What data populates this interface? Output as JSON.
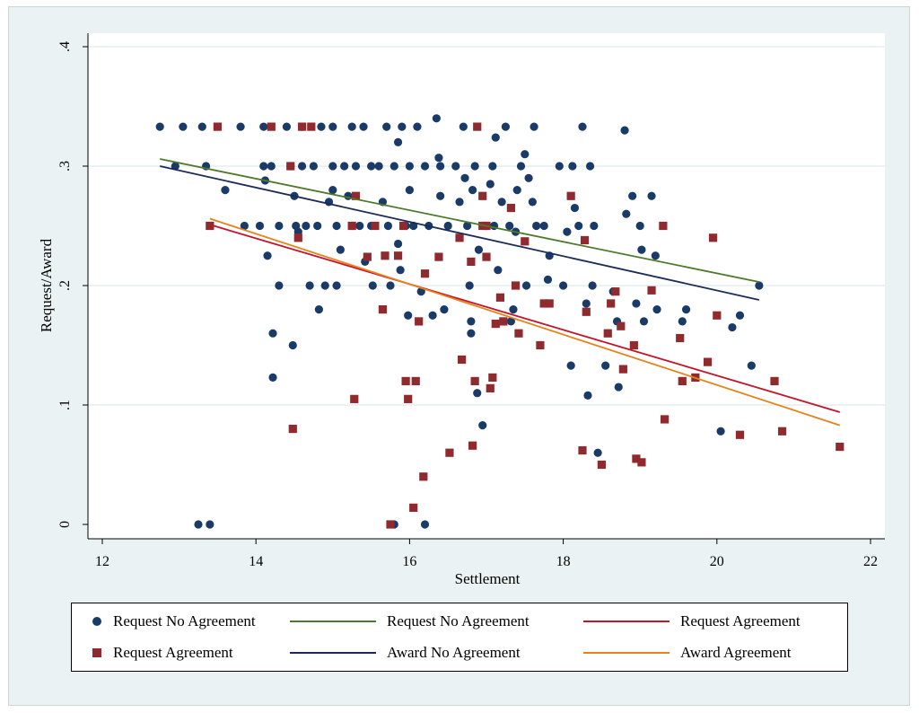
{
  "chart_data": {
    "type": "scatter",
    "xlabel": "Settlement",
    "ylabel": "Request/Award",
    "xlim": [
      11.85,
      22.2
    ],
    "ylim": [
      -0.025,
      0.41
    ],
    "x_ticks": [
      12,
      14,
      16,
      18,
      20,
      22
    ],
    "x_tick_labels": [
      "12",
      "14",
      "16",
      "18",
      "20",
      "22"
    ],
    "y_ticks": [
      0,
      0.1,
      0.2,
      0.3,
      0.4
    ],
    "y_tick_labels": [
      "0",
      ".1",
      ".2",
      ".3",
      ".4"
    ],
    "grid": "horizontal",
    "legend_position": "bottom",
    "colors": {
      "request_no_agreement_points": "#1a3a68",
      "request_agreement_points": "#8f2a2e",
      "request_no_agreement_line": "#4d7a2a",
      "award_no_agreement_line": "#1b2a58",
      "request_agreement_line": "#c4132a",
      "award_agreement_line": "#e8821a",
      "background": "#eaf2f3",
      "plot_background": "#ffffff",
      "gridline": "#e3edee"
    },
    "series": [
      {
        "name": "Request No Agreement",
        "kind": "points",
        "marker": "circle",
        "color": "#1a3a68",
        "points": [
          [
            12.75,
            0.333
          ],
          [
            12.95,
            0.3
          ],
          [
            13.05,
            0.333
          ],
          [
            13.3,
            0.333
          ],
          [
            13.35,
            0.3
          ],
          [
            13.6,
            0.28
          ],
          [
            13.8,
            0.333
          ],
          [
            13.85,
            0.25
          ],
          [
            14.05,
            0.25
          ],
          [
            14.1,
            0.333
          ],
          [
            14.1,
            0.3
          ],
          [
            14.12,
            0.288
          ],
          [
            14.15,
            0.225
          ],
          [
            14.2,
            0.3
          ],
          [
            14.22,
            0.16
          ],
          [
            14.22,
            0.123
          ],
          [
            14.3,
            0.25
          ],
          [
            14.3,
            0.2
          ],
          [
            14.4,
            0.333
          ],
          [
            14.45,
            0.3
          ],
          [
            14.48,
            0.15
          ],
          [
            14.5,
            0.275
          ],
          [
            14.52,
            0.25
          ],
          [
            14.55,
            0.245
          ],
          [
            14.6,
            0.333
          ],
          [
            14.6,
            0.3
          ],
          [
            14.65,
            0.25
          ],
          [
            14.7,
            0.2
          ],
          [
            14.75,
            0.3
          ],
          [
            14.8,
            0.25
          ],
          [
            14.82,
            0.18
          ],
          [
            14.85,
            0.333
          ],
          [
            14.9,
            0.2
          ],
          [
            14.95,
            0.27
          ],
          [
            15.0,
            0.333
          ],
          [
            15.0,
            0.3
          ],
          [
            15.0,
            0.28
          ],
          [
            15.05,
            0.25
          ],
          [
            15.05,
            0.2
          ],
          [
            15.1,
            0.23
          ],
          [
            15.15,
            0.3
          ],
          [
            15.2,
            0.275
          ],
          [
            15.25,
            0.333
          ],
          [
            15.25,
            0.25
          ],
          [
            15.3,
            0.3
          ],
          [
            15.35,
            0.25
          ],
          [
            15.4,
            0.333
          ],
          [
            15.42,
            0.22
          ],
          [
            15.5,
            0.3
          ],
          [
            15.5,
            0.25
          ],
          [
            15.52,
            0.2
          ],
          [
            15.6,
            0.3
          ],
          [
            15.65,
            0.27
          ],
          [
            15.7,
            0.333
          ],
          [
            15.72,
            0.25
          ],
          [
            15.75,
            0.2
          ],
          [
            15.8,
            0.3
          ],
          [
            15.85,
            0.32
          ],
          [
            15.85,
            0.235
          ],
          [
            15.88,
            0.213
          ],
          [
            15.9,
            0.333
          ],
          [
            15.95,
            0.25
          ],
          [
            15.98,
            0.175
          ],
          [
            16.0,
            0.3
          ],
          [
            16.0,
            0.28
          ],
          [
            16.05,
            0.25
          ],
          [
            16.1,
            0.333
          ],
          [
            16.15,
            0.195
          ],
          [
            16.2,
            0.3
          ],
          [
            16.2,
            0.0
          ],
          [
            16.25,
            0.25
          ],
          [
            16.3,
            0.175
          ],
          [
            16.35,
            0.34
          ],
          [
            16.38,
            0.307
          ],
          [
            16.4,
            0.3
          ],
          [
            16.4,
            0.275
          ],
          [
            16.45,
            0.18
          ],
          [
            16.5,
            0.25
          ],
          [
            16.6,
            0.3
          ],
          [
            16.65,
            0.27
          ],
          [
            16.7,
            0.333
          ],
          [
            16.72,
            0.29
          ],
          [
            16.75,
            0.25
          ],
          [
            16.78,
            0.2
          ],
          [
            16.8,
            0.17
          ],
          [
            16.8,
            0.16
          ],
          [
            16.82,
            0.28
          ],
          [
            16.85,
            0.3
          ],
          [
            16.88,
            0.11
          ],
          [
            16.9,
            0.23
          ],
          [
            16.95,
            0.083
          ],
          [
            17.0,
            0.25
          ],
          [
            17.05,
            0.285
          ],
          [
            17.08,
            0.3
          ],
          [
            17.1,
            0.25
          ],
          [
            17.12,
            0.324
          ],
          [
            17.15,
            0.213
          ],
          [
            17.2,
            0.27
          ],
          [
            17.25,
            0.333
          ],
          [
            17.3,
            0.25
          ],
          [
            17.32,
            0.17
          ],
          [
            17.35,
            0.18
          ],
          [
            17.38,
            0.245
          ],
          [
            17.4,
            0.28
          ],
          [
            17.45,
            0.3
          ],
          [
            17.5,
            0.31
          ],
          [
            17.52,
            0.2
          ],
          [
            17.55,
            0.29
          ],
          [
            17.6,
            0.27
          ],
          [
            17.62,
            0.333
          ],
          [
            17.65,
            0.25
          ],
          [
            17.75,
            0.25
          ],
          [
            17.8,
            0.205
          ],
          [
            17.82,
            0.225
          ],
          [
            17.95,
            0.3
          ],
          [
            18.0,
            0.2
          ],
          [
            18.05,
            0.245
          ],
          [
            18.1,
            0.133
          ],
          [
            18.12,
            0.3
          ],
          [
            18.15,
            0.265
          ],
          [
            18.2,
            0.25
          ],
          [
            18.25,
            0.333
          ],
          [
            18.3,
            0.185
          ],
          [
            18.32,
            0.108
          ],
          [
            18.35,
            0.3
          ],
          [
            18.38,
            0.2
          ],
          [
            18.4,
            0.25
          ],
          [
            18.45,
            0.06
          ],
          [
            18.55,
            0.133
          ],
          [
            18.65,
            0.195
          ],
          [
            18.7,
            0.17
          ],
          [
            18.72,
            0.115
          ],
          [
            18.8,
            0.33
          ],
          [
            18.82,
            0.26
          ],
          [
            18.9,
            0.275
          ],
          [
            18.95,
            0.185
          ],
          [
            19.0,
            0.25
          ],
          [
            19.02,
            0.23
          ],
          [
            19.05,
            0.17
          ],
          [
            19.15,
            0.275
          ],
          [
            19.2,
            0.225
          ],
          [
            19.22,
            0.18
          ],
          [
            19.55,
            0.17
          ],
          [
            19.6,
            0.18
          ],
          [
            20.05,
            0.078
          ],
          [
            20.2,
            0.165
          ],
          [
            20.3,
            0.175
          ],
          [
            20.45,
            0.133
          ],
          [
            20.55,
            0.2
          ],
          [
            13.25,
            0.0
          ],
          [
            13.4,
            0.0
          ],
          [
            15.8,
            0.0
          ]
        ]
      },
      {
        "name": "Request Agreement",
        "kind": "points",
        "marker": "square",
        "color": "#8f2a2e",
        "points": [
          [
            13.4,
            0.25
          ],
          [
            13.5,
            0.333
          ],
          [
            14.2,
            0.333
          ],
          [
            14.45,
            0.3
          ],
          [
            14.48,
            0.08
          ],
          [
            14.55,
            0.24
          ],
          [
            14.6,
            0.333
          ],
          [
            14.72,
            0.333
          ],
          [
            15.25,
            0.25
          ],
          [
            15.28,
            0.105
          ],
          [
            15.3,
            0.275
          ],
          [
            15.45,
            0.224
          ],
          [
            15.55,
            0.25
          ],
          [
            15.65,
            0.18
          ],
          [
            15.68,
            0.225
          ],
          [
            15.75,
            0.0
          ],
          [
            15.85,
            0.225
          ],
          [
            15.92,
            0.25
          ],
          [
            15.95,
            0.12
          ],
          [
            15.98,
            0.105
          ],
          [
            16.05,
            0.014
          ],
          [
            16.08,
            0.12
          ],
          [
            16.12,
            0.17
          ],
          [
            16.18,
            0.04
          ],
          [
            16.2,
            0.21
          ],
          [
            16.38,
            0.224
          ],
          [
            16.52,
            0.06
          ],
          [
            16.65,
            0.24
          ],
          [
            16.68,
            0.138
          ],
          [
            16.8,
            0.22
          ],
          [
            16.82,
            0.066
          ],
          [
            16.85,
            0.12
          ],
          [
            16.88,
            0.333
          ],
          [
            16.95,
            0.275
          ],
          [
            17.0,
            0.224
          ],
          [
            17.05,
            0.114
          ],
          [
            17.08,
            0.123
          ],
          [
            17.12,
            0.168
          ],
          [
            17.18,
            0.19
          ],
          [
            17.22,
            0.17
          ],
          [
            17.32,
            0.265
          ],
          [
            17.38,
            0.2
          ],
          [
            17.42,
            0.16
          ],
          [
            17.5,
            0.237
          ],
          [
            17.7,
            0.15
          ],
          [
            17.75,
            0.185
          ],
          [
            17.82,
            0.185
          ],
          [
            18.1,
            0.275
          ],
          [
            18.25,
            0.062
          ],
          [
            18.28,
            0.238
          ],
          [
            18.3,
            0.178
          ],
          [
            18.5,
            0.05
          ],
          [
            18.58,
            0.16
          ],
          [
            18.62,
            0.185
          ],
          [
            18.68,
            0.195
          ],
          [
            18.75,
            0.166
          ],
          [
            18.78,
            0.13
          ],
          [
            18.92,
            0.15
          ],
          [
            18.95,
            0.055
          ],
          [
            19.02,
            0.052
          ],
          [
            19.15,
            0.196
          ],
          [
            19.3,
            0.25
          ],
          [
            19.32,
            0.088
          ],
          [
            19.52,
            0.156
          ],
          [
            19.55,
            0.12
          ],
          [
            19.72,
            0.123
          ],
          [
            19.88,
            0.136
          ],
          [
            19.95,
            0.24
          ],
          [
            20.0,
            0.175
          ],
          [
            20.3,
            0.075
          ],
          [
            20.75,
            0.12
          ],
          [
            20.85,
            0.078
          ],
          [
            21.6,
            0.065
          ],
          [
            17.0,
            0.25
          ],
          [
            16.95,
            0.25
          ]
        ]
      },
      {
        "name": "Request No Agreement",
        "kind": "line",
        "color": "#4d7a2a",
        "points": [
          [
            12.75,
            0.306
          ],
          [
            20.55,
            0.203
          ]
        ]
      },
      {
        "name": "Award No Agreement",
        "kind": "line",
        "color": "#1b2a58",
        "points": [
          [
            12.75,
            0.3
          ],
          [
            20.55,
            0.188
          ]
        ]
      },
      {
        "name": "Request Agreement",
        "kind": "line",
        "color": "#c4132a",
        "points": [
          [
            13.4,
            0.251
          ],
          [
            21.6,
            0.094
          ]
        ]
      },
      {
        "name": "Award Agreement",
        "kind": "line",
        "color": "#e8821a",
        "points": [
          [
            13.4,
            0.256
          ],
          [
            21.6,
            0.083
          ]
        ]
      }
    ]
  },
  "legend": {
    "items": [
      {
        "label": "Request No Agreement",
        "symbol": "circle",
        "color": "#1a3a68"
      },
      {
        "label": "Request No Agreement",
        "symbol": "line",
        "color": "#4d7a2a"
      },
      {
        "label": "Request Agreement",
        "symbol": "line",
        "color": "#c4132a"
      },
      {
        "label": "Request Agreement",
        "symbol": "square",
        "color": "#8f2a2e"
      },
      {
        "label": "Award No Agreement",
        "symbol": "line",
        "color": "#1b2a58"
      },
      {
        "label": "Award Agreement",
        "symbol": "line",
        "color": "#e8821a"
      }
    ]
  }
}
